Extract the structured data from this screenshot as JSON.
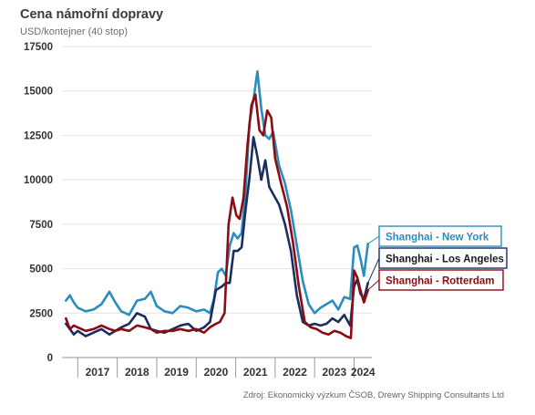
{
  "header": {
    "title": "Cena námořní dopravy",
    "subtitle": "USD/kontejner (40 stop)"
  },
  "source": "Zdroj: Ekonomický výzkum ČSOB, Drewry Shipping Consultants Ltd",
  "chart_data": {
    "type": "line",
    "ylim": [
      0,
      17500
    ],
    "yticks": [
      0,
      2500,
      5000,
      7500,
      10000,
      12500,
      15000,
      17500
    ],
    "ytick_labels": [
      "0",
      "2500",
      "5000",
      "7500",
      "10000",
      "12500",
      "15000",
      "17500"
    ],
    "xlim": [
      2016.6,
      2024.45
    ],
    "xticks": [
      2017,
      2018,
      2019,
      2020,
      2021,
      2022,
      2023,
      2024
    ],
    "xtick_labels": [
      "2017",
      "2018",
      "2019",
      "2020",
      "2021",
      "2022",
      "2023",
      "2024"
    ],
    "grid": true,
    "legend": "right",
    "series": [
      {
        "name": "Shanghai - New York",
        "color": "#2b8cbe",
        "label_color": "#2b8cbe",
        "label_bg": "#ffffff",
        "x": [
          2016.7,
          2016.8,
          2016.9,
          2017.0,
          2017.2,
          2017.4,
          2017.6,
          2017.8,
          2017.95,
          2018.1,
          2018.3,
          2018.5,
          2018.7,
          2018.85,
          2019.0,
          2019.2,
          2019.4,
          2019.6,
          2019.8,
          2020.0,
          2020.2,
          2020.35,
          2020.45,
          2020.55,
          2020.65,
          2020.75,
          2020.85,
          2020.95,
          2021.05,
          2021.15,
          2021.25,
          2021.35,
          2021.45,
          2021.55,
          2021.65,
          2021.75,
          2021.85,
          2021.95,
          2022.1,
          2022.25,
          2022.4,
          2022.55,
          2022.7,
          2022.85,
          2023.0,
          2023.15,
          2023.3,
          2023.45,
          2023.6,
          2023.75,
          2023.9,
          2024.0,
          2024.08,
          2024.16,
          2024.25,
          2024.35
        ],
        "y": [
          3200,
          3500,
          3100,
          2800,
          2600,
          2700,
          3000,
          3700,
          3100,
          2600,
          2400,
          3200,
          3300,
          3700,
          2900,
          2600,
          2500,
          2900,
          2800,
          2600,
          2700,
          2500,
          3300,
          4800,
          5000,
          4600,
          6300,
          7000,
          6700,
          7000,
          9300,
          13200,
          14500,
          16100,
          14000,
          12500,
          12300,
          12700,
          10800,
          9800,
          8300,
          6300,
          4300,
          3000,
          2500,
          2800,
          3000,
          3200,
          2700,
          3400,
          3300,
          6200,
          6300,
          5600,
          4600,
          6400
        ]
      },
      {
        "name": "Shanghai - Los Angeles",
        "color": "#1a2f5f",
        "label_color": "#1a1a1a",
        "label_bg": "#ffffff",
        "x": [
          2016.7,
          2016.8,
          2016.9,
          2017.0,
          2017.2,
          2017.4,
          2017.6,
          2017.8,
          2017.95,
          2018.1,
          2018.3,
          2018.5,
          2018.7,
          2018.85,
          2019.0,
          2019.2,
          2019.4,
          2019.6,
          2019.8,
          2020.0,
          2020.2,
          2020.35,
          2020.5,
          2020.65,
          2020.75,
          2020.85,
          2020.95,
          2021.05,
          2021.15,
          2021.25,
          2021.35,
          2021.45,
          2021.55,
          2021.65,
          2021.75,
          2021.85,
          2021.95,
          2022.1,
          2022.25,
          2022.4,
          2022.55,
          2022.7,
          2022.85,
          2023.0,
          2023.15,
          2023.3,
          2023.45,
          2023.6,
          2023.75,
          2023.9,
          2024.0,
          2024.08,
          2024.16,
          2024.25,
          2024.35
        ],
        "y": [
          1900,
          1600,
          1300,
          1500,
          1200,
          1400,
          1600,
          1300,
          1500,
          1700,
          1900,
          2500,
          2300,
          1600,
          1500,
          1400,
          1600,
          1800,
          1900,
          1500,
          1700,
          2000,
          3800,
          4000,
          4200,
          4200,
          6000,
          6000,
          6200,
          8300,
          10100,
          12400,
          11300,
          10000,
          11100,
          9600,
          9200,
          8600,
          7500,
          6000,
          3500,
          2000,
          1800,
          1900,
          1800,
          1900,
          2200,
          2000,
          2400,
          1800,
          4000,
          4400,
          3600,
          3300,
          4200
        ]
      },
      {
        "name": "Shanghai - Rotterdam",
        "color": "#8b0c12",
        "label_color": "#8b0c12",
        "label_bg": "#ffffff",
        "x": [
          2016.7,
          2016.8,
          2016.9,
          2017.0,
          2017.2,
          2017.4,
          2017.6,
          2017.8,
          2017.95,
          2018.1,
          2018.3,
          2018.5,
          2018.7,
          2018.85,
          2019.0,
          2019.2,
          2019.4,
          2019.6,
          2019.8,
          2020.0,
          2020.2,
          2020.35,
          2020.5,
          2020.6,
          2020.72,
          2020.82,
          2020.92,
          2021.02,
          2021.1,
          2021.2,
          2021.3,
          2021.4,
          2021.5,
          2021.6,
          2021.7,
          2021.8,
          2021.9,
          2022.0,
          2022.15,
          2022.3,
          2022.45,
          2022.6,
          2022.75,
          2022.9,
          2023.05,
          2023.2,
          2023.35,
          2023.5,
          2023.65,
          2023.8,
          2023.92,
          2024.0,
          2024.08,
          2024.16,
          2024.25,
          2024.35
        ],
        "y": [
          2200,
          1600,
          1800,
          1700,
          1500,
          1600,
          1800,
          1600,
          1500,
          1600,
          1500,
          1800,
          1700,
          1600,
          1400,
          1500,
          1500,
          1600,
          1500,
          1600,
          1400,
          1700,
          1900,
          2000,
          2500,
          7500,
          9000,
          8000,
          7800,
          9000,
          12000,
          14200,
          14800,
          12800,
          12500,
          13900,
          13500,
          11200,
          9800,
          8500,
          6500,
          4000,
          2000,
          1700,
          1600,
          1400,
          1300,
          1500,
          1400,
          1200,
          1100,
          4900,
          4500,
          3800,
          3100,
          3800
        ]
      }
    ]
  }
}
